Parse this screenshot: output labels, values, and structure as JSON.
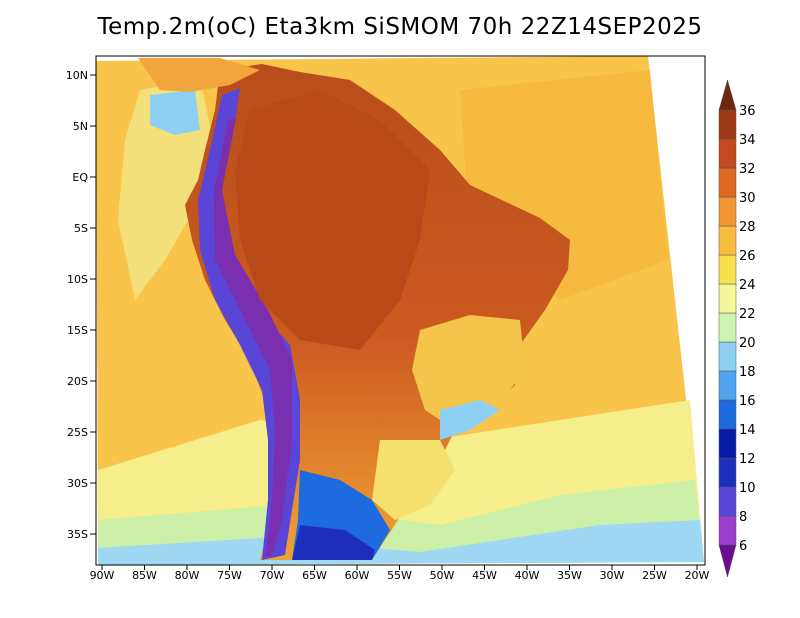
{
  "title": "Temp.2m(oC) Eta3km SiSMOM 70h 22Z14SEP2025",
  "map": {
    "variable": "2 m air temperature",
    "units": "oC",
    "lon_range": [
      -90,
      -20
    ],
    "lat_range": [
      -38,
      12
    ],
    "lat_ticks": [
      "10N",
      "5N",
      "EQ",
      "5S",
      "10S",
      "15S",
      "20S",
      "25S",
      "30S",
      "35S"
    ],
    "lon_ticks": [
      "90W",
      "85W",
      "80W",
      "75W",
      "70W",
      "65W",
      "60W",
      "55W",
      "50W",
      "45W",
      "40W",
      "35W",
      "30W",
      "25W",
      "20W"
    ]
  },
  "colorbar": {
    "labels": [
      "6",
      "8",
      "10",
      "12",
      "14",
      "16",
      "18",
      "20",
      "22",
      "24",
      "26",
      "28",
      "30",
      "32",
      "34",
      "36"
    ],
    "colors": [
      "#6a0d91",
      "#9c3fd1",
      "#5a46d6",
      "#1d2ebd",
      "#061aa8",
      "#1e6be0",
      "#4fa3ef",
      "#8ed0f4",
      "#ccf5b4",
      "#f5f59a",
      "#f9e04e",
      "#f9bd3e",
      "#f29733",
      "#de6a22",
      "#c24a1e",
      "#9e3918",
      "#6e2810"
    ]
  }
}
